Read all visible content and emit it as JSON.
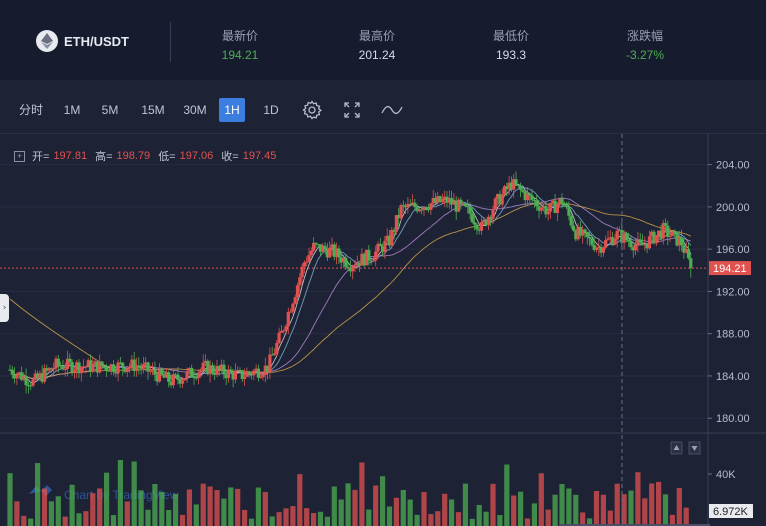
{
  "header": {
    "pair": "ETH/USDT",
    "stats": [
      {
        "label": "最新价",
        "value": "194.21",
        "color": "#4caf50"
      },
      {
        "label": "最高价",
        "value": "201.24",
        "color": ""
      },
      {
        "label": "最低价",
        "value": "193.3",
        "color": ""
      },
      {
        "label": "涨跌幅",
        "value": "-3.27%",
        "color": "#4caf50"
      }
    ]
  },
  "toolbar": {
    "intervals": [
      "分时",
      "1M",
      "5M",
      "15M",
      "30M",
      "1H",
      "1D"
    ],
    "active": "1H",
    "icons": [
      "gear-icon",
      "fullscreen-icon",
      "indicator-icon"
    ]
  },
  "legend": {
    "open_label": "开=",
    "open": "197.81",
    "high_label": "高=",
    "high": "198.79",
    "low_label": "低=",
    "low": "197.06",
    "close_label": "收=",
    "close": "197.45"
  },
  "colors": {
    "up": "#e0524f",
    "down": "#4caf50",
    "bg": "#1e2235"
  },
  "chart_data": {
    "type": "candlestick",
    "price_axis_ticks": [
      "204.00",
      "200.00",
      "196.00",
      "192.00",
      "188.00",
      "184.00",
      "180.00"
    ],
    "volume_axis_ticks": [
      "40K"
    ],
    "last_price_label": "194.21",
    "last_volume_label": "6.972K",
    "watermark": "Chart by TradingView",
    "ylim": [
      178.6,
      206.9
    ]
  }
}
